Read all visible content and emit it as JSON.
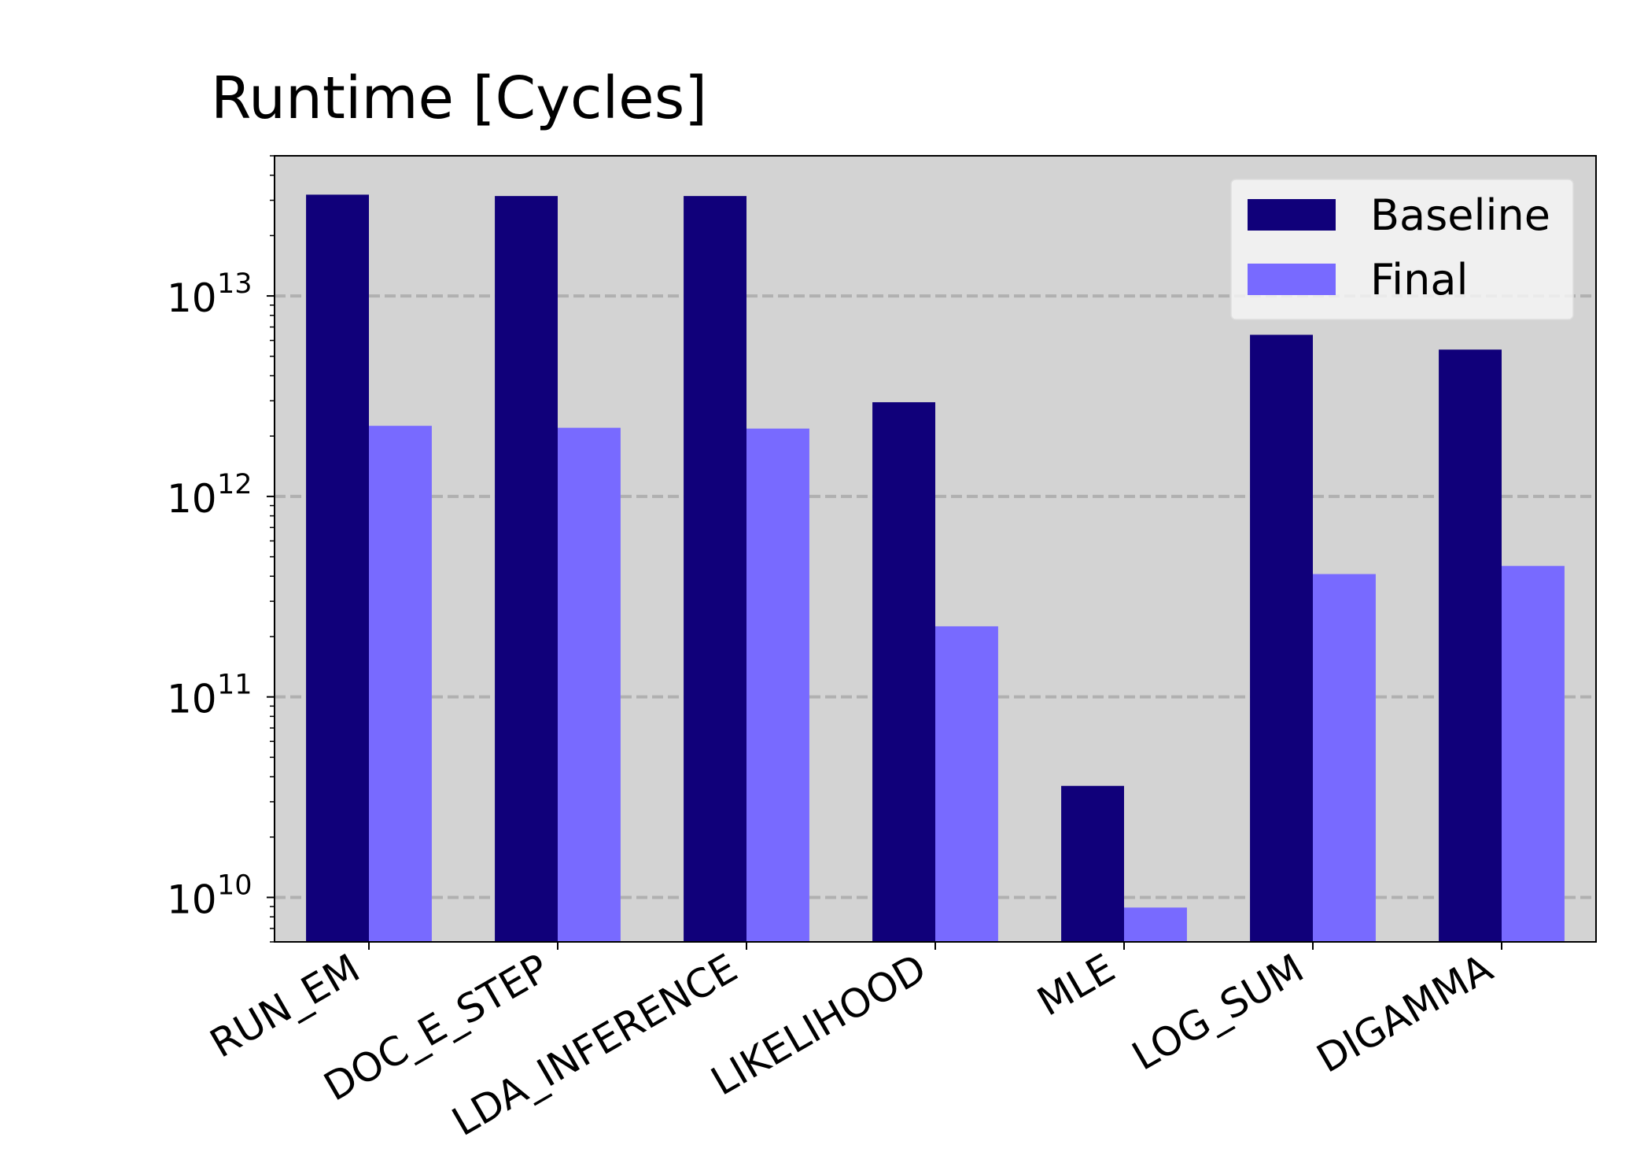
{
  "chart_data": {
    "type": "bar",
    "title": "Runtime [Cycles]",
    "xlabel": "",
    "ylabel": "",
    "yscale": "log",
    "ylim": [
      6000000000,
      50000000000000
    ],
    "yticks": [
      {
        "value": 10000000000,
        "base": "10",
        "exp": "10"
      },
      {
        "value": 100000000000,
        "base": "10",
        "exp": "11"
      },
      {
        "value": 1000000000000,
        "base": "10",
        "exp": "12"
      },
      {
        "value": 10000000000000,
        "base": "10",
        "exp": "13"
      }
    ],
    "grid": "horizontal dashed at major ticks",
    "legend_position": "top-right",
    "categories": [
      "RUN_EM",
      "DOC_E_STEP",
      "LDA_INFERENCE",
      "LIKELIHOOD",
      "MLE",
      "LOG_SUM",
      "DIGAMMA"
    ],
    "series": [
      {
        "name": "Baseline",
        "color": "#10007a",
        "values": [
          32000000000000,
          31500000000000,
          31500000000000,
          2950000000000,
          36000000000,
          6400000000000,
          5400000000000
        ]
      },
      {
        "name": "Final",
        "color": "#786aff",
        "values": [
          2250000000000,
          2200000000000,
          2180000000000,
          225000000000,
          8900000000,
          410000000000,
          450000000000
        ]
      }
    ],
    "colors": {
      "plot_background": "#d3d3d3",
      "grid": "#b0b0b0",
      "legend_background": "#f4f4f4"
    }
  }
}
